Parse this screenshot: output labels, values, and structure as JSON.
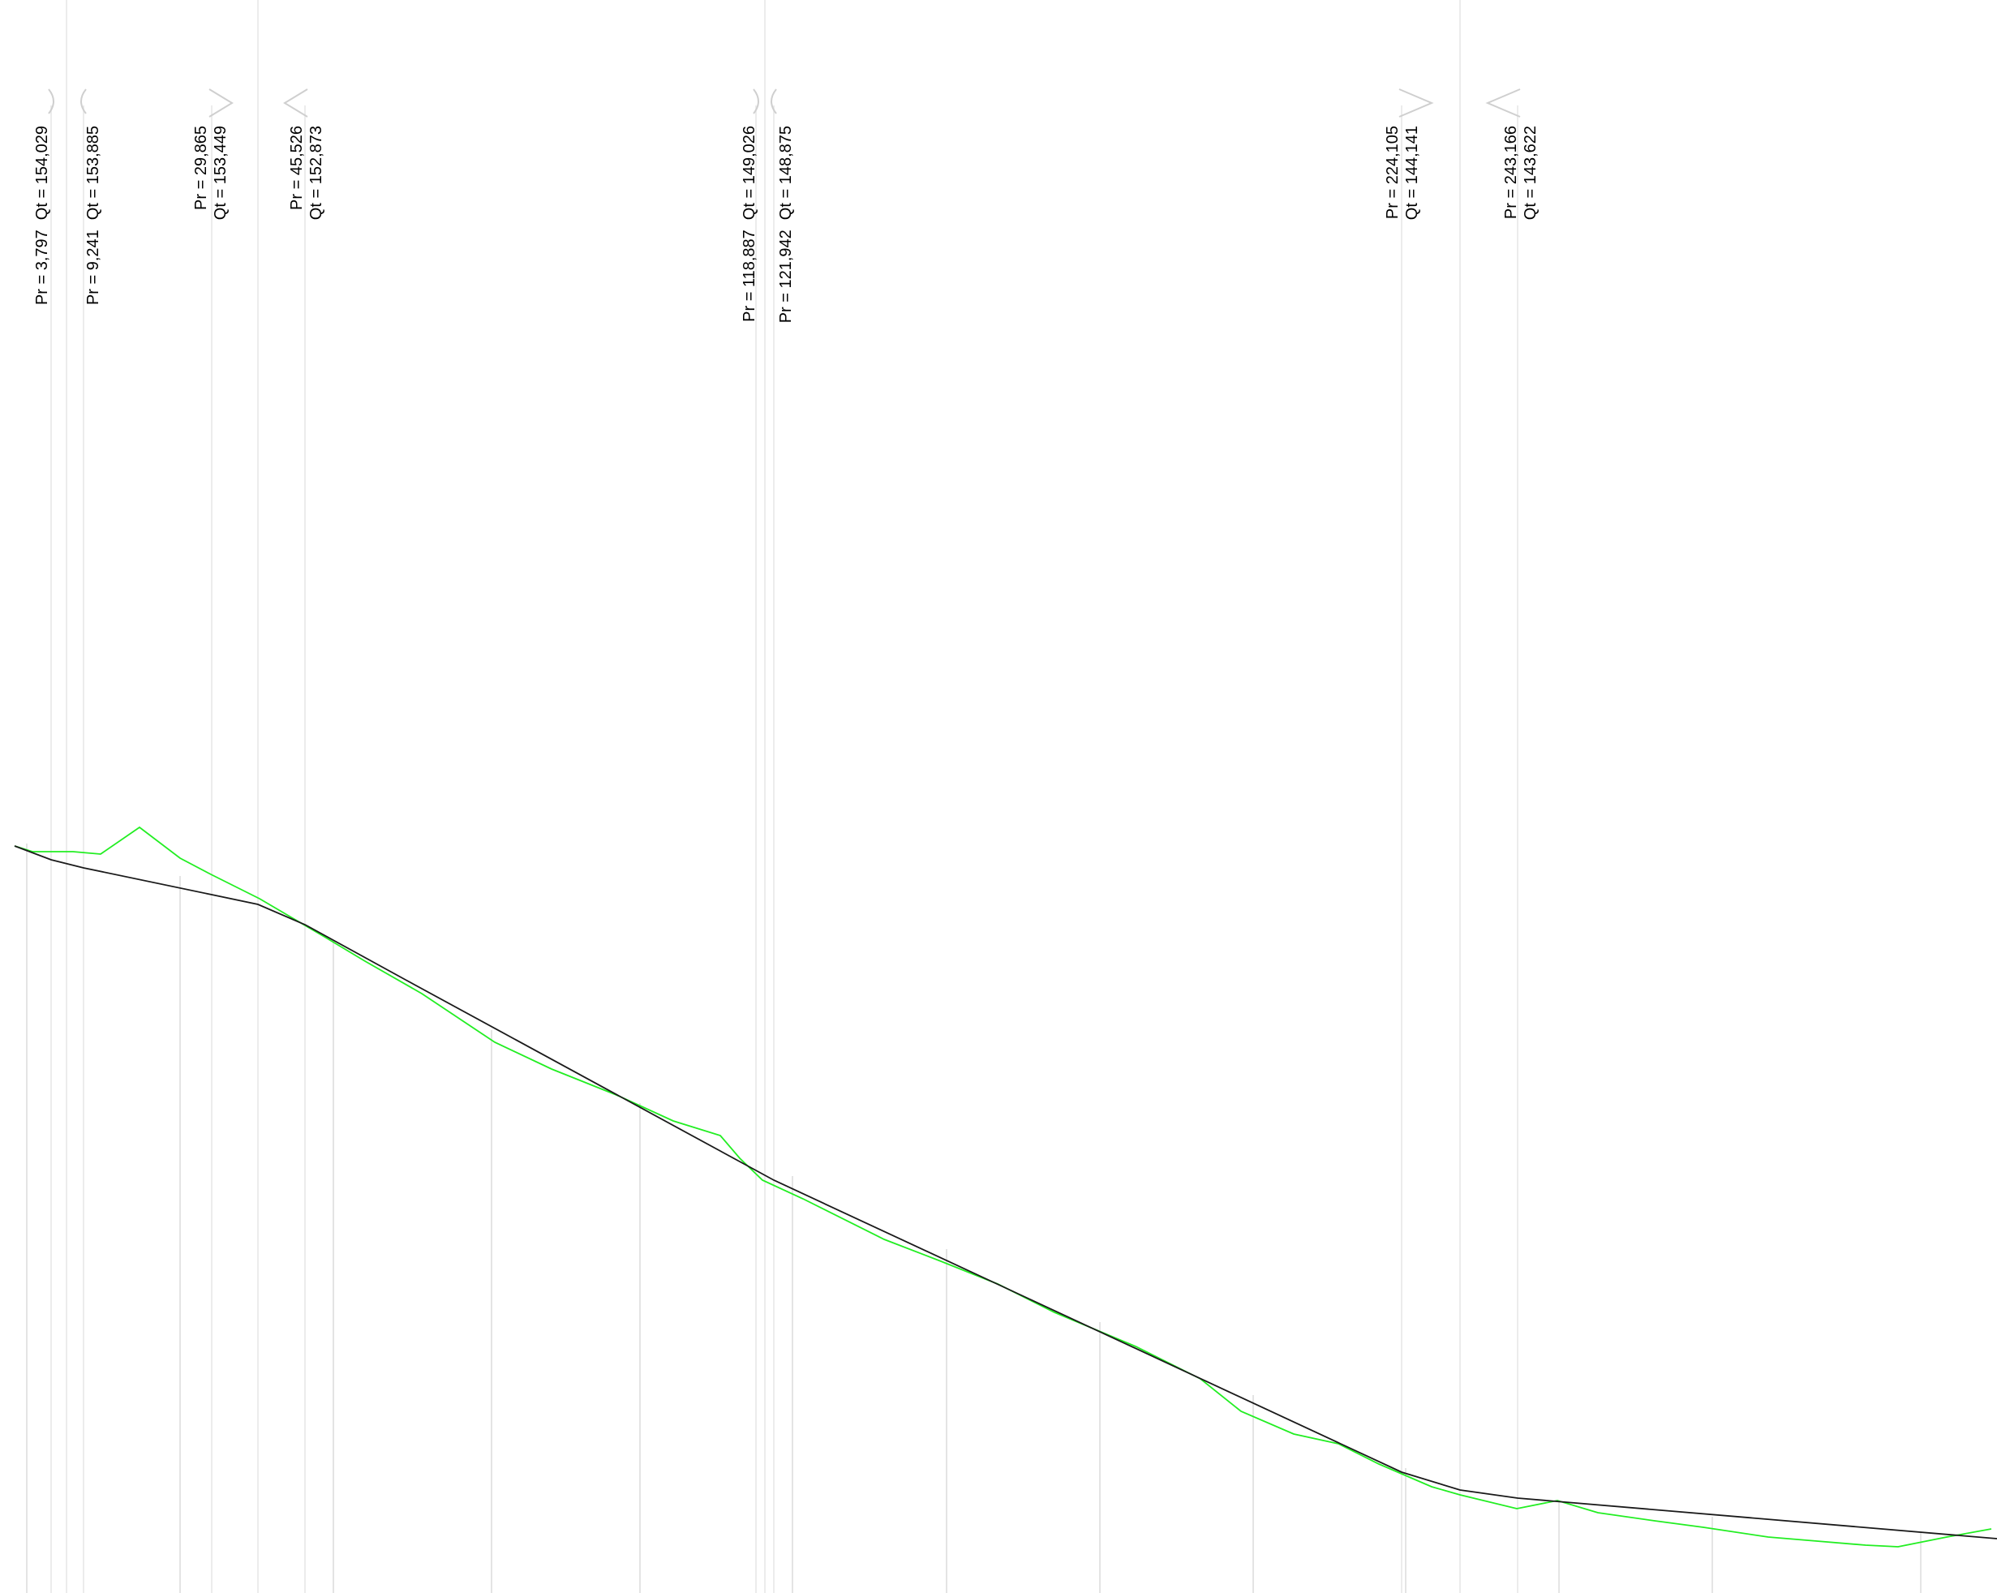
{
  "colors": {
    "design_profile": "#1a1a1a",
    "ground_profile": "#22ee22",
    "grid": "#e6e6e6"
  },
  "stations": [
    {
      "id": "s1",
      "pr": "Pr = 3,797",
      "qt": "Qt = 154,029",
      "layout": "single",
      "mark": "curve-right"
    },
    {
      "id": "s2",
      "pr": "Pr = 9,241",
      "qt": "Qt = 153,885",
      "layout": "single",
      "mark": "curve-left"
    },
    {
      "id": "s3",
      "pr": "Pr = 29,865",
      "qt": "Qt = 153,449",
      "layout": "double",
      "mark": "triangle-right"
    },
    {
      "id": "s4",
      "pr": "Pr = 45,526",
      "qt": "Qt = 152,873",
      "layout": "double",
      "mark": "triangle-left"
    },
    {
      "id": "s5",
      "pr": "Pr = 118,887",
      "qt": "Qt = 149,026",
      "layout": "single",
      "mark": "curve-right"
    },
    {
      "id": "s6",
      "pr": "Pr = 121,942",
      "qt": "Qt = 148,875",
      "layout": "single",
      "mark": "curve-left"
    },
    {
      "id": "s7",
      "pr": "Pr = 224,105",
      "qt": "Qt = 144,141",
      "layout": "double",
      "mark": "triangle-right"
    },
    {
      "id": "s8",
      "pr": "Pr = 243,166",
      "qt": "Qt = 143,622",
      "layout": "double",
      "mark": "triangle-left"
    }
  ]
}
